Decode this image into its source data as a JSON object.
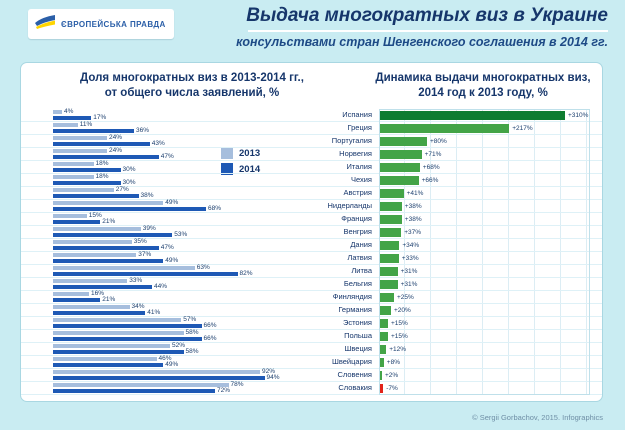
{
  "header": {
    "logo_text": "ЄВРОПЕЙСЬКА ПРАВДА",
    "title": "Выдача многократных виз в Украине",
    "subtitle": "консульствами стран Шенгенского соглашения в 2014 гг."
  },
  "left_chart": {
    "title_line1": "Доля многократных виз в 2013-2014 гг.,",
    "title_line2": "от общего числа заявлений, %",
    "legend": [
      "2013",
      "2014"
    ]
  },
  "right_chart": {
    "title_line1": "Динамика выдачи многократных виз,",
    "title_line2": "2014 год к 2013 году, %"
  },
  "chart_data": [
    {
      "type": "bar",
      "orientation": "horizontal",
      "title": "Доля многократных виз в 2013-2014 гг., от общего числа заявлений, %",
      "unit": "%",
      "xlim": [
        0,
        100
      ],
      "legend_position": "upper-right-inside",
      "categories": [
        "Испания",
        "Греция",
        "Португалия",
        "Норвегия",
        "Италия",
        "Чехия",
        "Австрия",
        "Нидерланды",
        "Франция",
        "Венгрия",
        "Дания",
        "Латвия",
        "Литва",
        "Бельгия",
        "Финляндия",
        "Германия",
        "Эстония",
        "Польша",
        "Швеция",
        "Швейцария",
        "Словения",
        "Словакия"
      ],
      "series": [
        {
          "name": "2013",
          "values": [
            4,
            11,
            24,
            24,
            18,
            18,
            27,
            49,
            15,
            39,
            35,
            37,
            63,
            33,
            16,
            34,
            57,
            58,
            52,
            46,
            92,
            78
          ]
        },
        {
          "name": "2014",
          "values": [
            17,
            36,
            43,
            47,
            30,
            30,
            38,
            68,
            21,
            53,
            47,
            49,
            82,
            44,
            21,
            41,
            66,
            66,
            58,
            49,
            94,
            72
          ]
        }
      ]
    },
    {
      "type": "bar",
      "orientation": "horizontal",
      "title": "Динамика выдачи многократных виз, 2014 год к 2013 году, %",
      "unit": "%",
      "xlim": [
        -10,
        320
      ],
      "grid": "vertical",
      "categories": [
        "Испания",
        "Греция",
        "Португалия",
        "Норвегия",
        "Италия",
        "Чехия",
        "Австрия",
        "Нидерланды",
        "Франция",
        "Венгрия",
        "Дания",
        "Латвия",
        "Литва",
        "Бельгия",
        "Финляндия",
        "Германия",
        "Эстония",
        "Польша",
        "Швеция",
        "Швейцария",
        "Словения",
        "Словакия"
      ],
      "values": [
        310,
        217,
        80,
        71,
        68,
        66,
        41,
        38,
        38,
        37,
        34,
        33,
        31,
        31,
        25,
        20,
        15,
        15,
        12,
        8,
        2,
        -7
      ]
    }
  ],
  "colors": {
    "background": "#c9ecf2",
    "panel": "#ffffff",
    "bar_2013": "#a6bedd",
    "bar_2014": "#1e59b5",
    "positive": "#43a447",
    "positive_dark": "#0e7c31",
    "negative": "#e2231a",
    "title_text": "#16366b",
    "logo_text": "#2b5fa8",
    "flag_blue": "#2b5fa8",
    "flag_yellow": "#ffd500"
  },
  "footer": {
    "credit": "© Sergii Gorbachov, 2015. Infographics"
  }
}
